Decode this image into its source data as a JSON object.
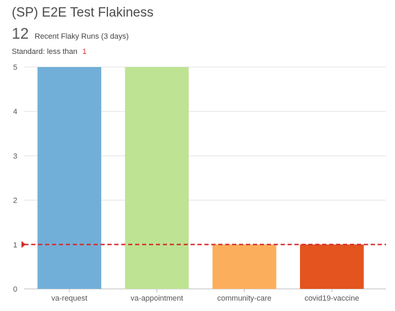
{
  "header": {
    "title": "(SP) E2E Test Flakiness",
    "metric_value": "12",
    "metric_label": "Recent Flaky Runs (3 days)",
    "standard_label": "Standard: less than",
    "standard_value": "1"
  },
  "chart_data": {
    "type": "bar",
    "categories": [
      "va-request",
      "va-appointment",
      "community-care",
      "covid19-vaccine"
    ],
    "values": [
      5,
      5,
      1,
      1
    ],
    "colors": [
      "#72afd8",
      "#bde393",
      "#fbae5b",
      "#e3541f"
    ],
    "ylim": [
      0,
      5
    ],
    "yticks": [
      0,
      1,
      2,
      3,
      4,
      5
    ],
    "grid": true,
    "threshold": {
      "value": 1,
      "color": "#d62a2a",
      "style": "dashed"
    }
  }
}
